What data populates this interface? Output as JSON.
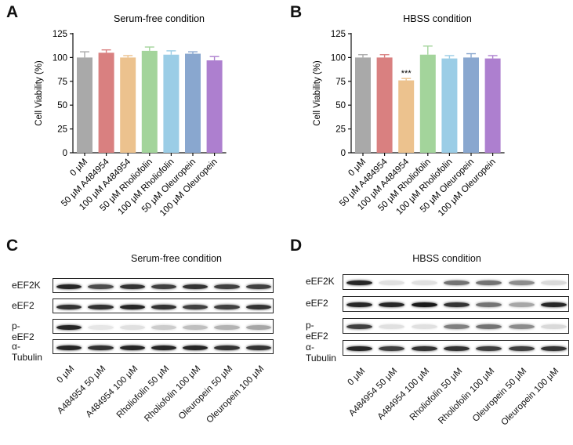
{
  "panels": {
    "A": {
      "letter": "A"
    },
    "B": {
      "letter": "B"
    },
    "C": {
      "letter": "C",
      "title": "Serum-free condition",
      "rows": [
        "eEF2K",
        "eEF2",
        "p-eEF2",
        "α-Tubulin"
      ],
      "lanes": [
        "0 μM",
        "A484954 50 μM",
        "A484954 100 μM",
        "Rholiofolin 50 μM",
        "Rholiofolin 100 μM",
        "Oleuropein 50 μM",
        "Oleuropein 100 μM"
      ],
      "band_intensity": [
        [
          0.85,
          0.7,
          0.8,
          0.75,
          0.8,
          0.75,
          0.75
        ],
        [
          0.8,
          0.8,
          0.85,
          0.8,
          0.75,
          0.75,
          0.8
        ],
        [
          0.85,
          0.1,
          0.12,
          0.2,
          0.25,
          0.3,
          0.35
        ],
        [
          0.85,
          0.8,
          0.85,
          0.85,
          0.85,
          0.8,
          0.8
        ]
      ]
    },
    "D": {
      "letter": "D",
      "title": "HBSS condition",
      "rows": [
        "eEF2K",
        "eEF2",
        "p-eEF2",
        "α-Tubulin"
      ],
      "lanes": [
        "0 μM",
        "A484954 50 μM",
        "A484954 100 μM",
        "Rholiofolin 50 μM",
        "Rholiofolin 100 μM",
        "Oleuropein 50 μM",
        "Oleuropein 100 μM"
      ],
      "band_intensity": [
        [
          0.85,
          0.12,
          0.12,
          0.55,
          0.55,
          0.45,
          0.15
        ],
        [
          0.85,
          0.85,
          0.9,
          0.8,
          0.55,
          0.35,
          0.85
        ],
        [
          0.75,
          0.12,
          0.12,
          0.5,
          0.55,
          0.45,
          0.15
        ],
        [
          0.85,
          0.75,
          0.8,
          0.8,
          0.75,
          0.75,
          0.8
        ]
      ]
    }
  },
  "chart_data": [
    {
      "type": "bar",
      "title": "Serum-free condition",
      "ylabel": "Cell Viability (%)",
      "xlabel": "",
      "ylim": [
        0,
        125
      ],
      "yticks": [
        0,
        25,
        50,
        75,
        100,
        125
      ],
      "categories": [
        "0 μM",
        "50 μM A484954",
        "100 μM A484954",
        "50 μM Rholiofolin",
        "100 μM Rholiofolin",
        "50 μM Oleuropein",
        "100 μM Oleuropein"
      ],
      "values": [
        100,
        105,
        100,
        107,
        103,
        104,
        97
      ],
      "errors": [
        6,
        3,
        2,
        4,
        4,
        2,
        4
      ],
      "colors": [
        "#a9a9a9",
        "#d98080",
        "#ecc28e",
        "#a3d49b",
        "#9bcde6",
        "#89a7cf",
        "#ad7fcf"
      ],
      "annotations": [
        "",
        "",
        "",
        "",
        "",
        "",
        ""
      ]
    },
    {
      "type": "bar",
      "title": "HBSS condition",
      "ylabel": "Cell Viability (%)",
      "xlabel": "",
      "ylim": [
        0,
        125
      ],
      "yticks": [
        0,
        25,
        50,
        75,
        100,
        125
      ],
      "categories": [
        "0 μM",
        "50 μM A484954",
        "100 μM A484954",
        "50 μM Rholiofolin",
        "100 μM Rholiofolin",
        "50 μM Oleuropein",
        "100 μM Oleuropein"
      ],
      "values": [
        100,
        100,
        76,
        103,
        99,
        100,
        99
      ],
      "errors": [
        3,
        3,
        2,
        9,
        3,
        4,
        3
      ],
      "colors": [
        "#a9a9a9",
        "#d98080",
        "#ecc28e",
        "#a3d49b",
        "#9bcde6",
        "#89a7cf",
        "#ad7fcf"
      ],
      "annotations": [
        "",
        "",
        "***",
        "",
        "",
        "",
        ""
      ]
    }
  ]
}
